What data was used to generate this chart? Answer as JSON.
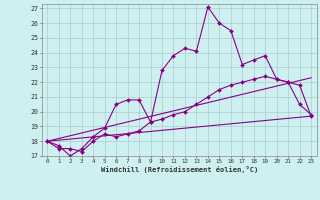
{
  "title": "",
  "xlabel": "Windchill (Refroidissement éolien,°C)",
  "bg_color": "#cff0f0",
  "line_color": "#880088",
  "grid_color": "#aacccc",
  "xlim": [
    -0.5,
    23.5
  ],
  "ylim": [
    17,
    27.3
  ],
  "yticks": [
    17,
    18,
    19,
    20,
    21,
    22,
    23,
    24,
    25,
    26,
    27
  ],
  "xticks": [
    0,
    1,
    2,
    3,
    4,
    5,
    6,
    7,
    8,
    9,
    10,
    11,
    12,
    13,
    14,
    15,
    16,
    17,
    18,
    19,
    20,
    21,
    22,
    23
  ],
  "lines": [
    {
      "x": [
        0,
        1,
        2,
        3,
        4,
        5,
        6,
        7,
        8,
        9,
        10,
        11,
        12,
        13,
        14,
        15,
        16,
        17,
        18,
        19,
        20,
        21,
        22,
        23
      ],
      "y": [
        18,
        17.7,
        17.0,
        17.5,
        18.3,
        18.9,
        20.5,
        20.8,
        20.8,
        19.3,
        22.8,
        23.8,
        24.3,
        24.1,
        27.1,
        26.0,
        25.5,
        23.2,
        23.5,
        23.8,
        22.2,
        22.0,
        20.5,
        19.8
      ],
      "marker": true
    },
    {
      "x": [
        0,
        1,
        2,
        3,
        4,
        5,
        6,
        7,
        8,
        9,
        10,
        11,
        12,
        13,
        14,
        15,
        16,
        17,
        18,
        19,
        20,
        21,
        22,
        23
      ],
      "y": [
        18,
        17.5,
        17.5,
        17.3,
        18.0,
        18.5,
        18.3,
        18.5,
        18.7,
        19.3,
        19.5,
        19.8,
        20.0,
        20.5,
        21.0,
        21.5,
        21.8,
        22.0,
        22.2,
        22.4,
        22.2,
        22.0,
        21.8,
        19.7
      ],
      "marker": true
    },
    {
      "x": [
        0,
        23
      ],
      "y": [
        18,
        22.3
      ],
      "marker": false
    },
    {
      "x": [
        0,
        23
      ],
      "y": [
        18,
        19.7
      ],
      "marker": false
    }
  ]
}
